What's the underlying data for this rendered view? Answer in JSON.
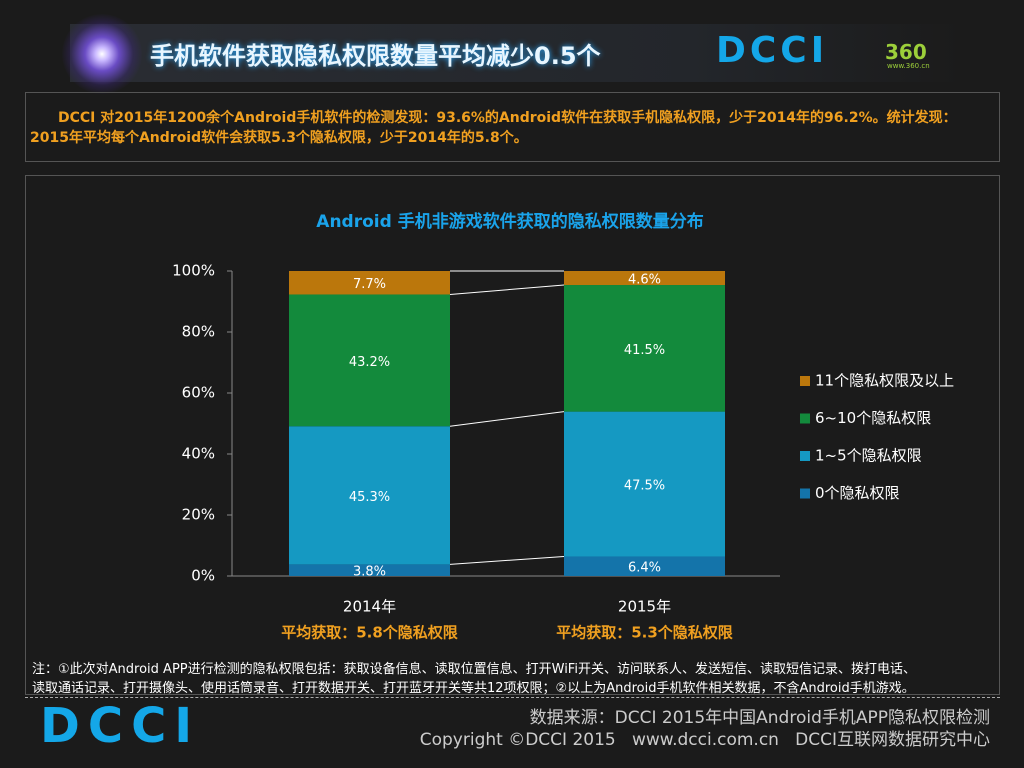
{
  "header": {
    "title": "手机软件获取隐私权限数量平均减少0.5个",
    "logo": "DCCI",
    "logo_360": "360",
    "logo_url": "www.360.cn"
  },
  "description": "DCCI 对2015年1200余个Android手机软件的检测发现：93.6%的Android软件在获取手机隐私权限，少于2014年的96.2%。统计发现：2015年平均每个Android软件会获取5.3个隐私权限，少于2014年的5.8个。",
  "chart_data": {
    "type": "stacked_bar",
    "title": "Android 手机非游戏软件获取的隐私权限数量分布",
    "categories": [
      "2014年",
      "2015年"
    ],
    "annotations": [
      "平均获取：5.8个隐私权限",
      "平均获取：5.3个隐私权限"
    ],
    "series": [
      {
        "name": "0个隐私权限",
        "color": "#1474aa",
        "values": [
          3.8,
          6.4
        ],
        "value_labels": [
          "3.8%",
          "6.4%"
        ]
      },
      {
        "name": "1~5个隐私权限",
        "color": "#1599c2",
        "values": [
          45.3,
          47.5
        ],
        "value_labels": [
          "45.3%",
          "47.5%"
        ]
      },
      {
        "name": "6~10个隐私权限",
        "color": "#138a3c",
        "values": [
          43.2,
          41.5
        ],
        "value_labels": [
          "43.2%",
          "41.5%"
        ]
      },
      {
        "name": "11个隐私权限及以上",
        "color": "#bb770c",
        "values": [
          7.7,
          4.6
        ],
        "value_labels": [
          "7.7%",
          "4.6%"
        ]
      }
    ],
    "ylim": [
      0,
      100
    ],
    "yticks": [
      {
        "value": 0,
        "label": "0%"
      },
      {
        "value": 20,
        "label": "20%"
      },
      {
        "value": 40,
        "label": "40%"
      },
      {
        "value": 60,
        "label": "60%"
      },
      {
        "value": 80,
        "label": "80%"
      },
      {
        "value": 100,
        "label": "100%"
      }
    ],
    "legend": "right"
  },
  "note": [
    "注：①此次对Android APP进行检测的隐私权限包括：获取设备信息、读取位置信息、打开WiFi开关、访问联系人、发送短信、读取短信记录、拨打电话、",
    "读取通话记录、打开摄像头、使用话筒录音、打开数据开关、打开蓝牙开关等共12项权限；②以上为Android手机软件相关数据，不含Android手机游戏。"
  ],
  "footer": {
    "logo": "DCCI",
    "source": "数据来源：DCCI 2015年中国Android手机APP隐私权限检测",
    "copyright": "Copyright ©DCCI 2015   www.dcci.com.cn   DCCI互联网数据研究中心"
  }
}
